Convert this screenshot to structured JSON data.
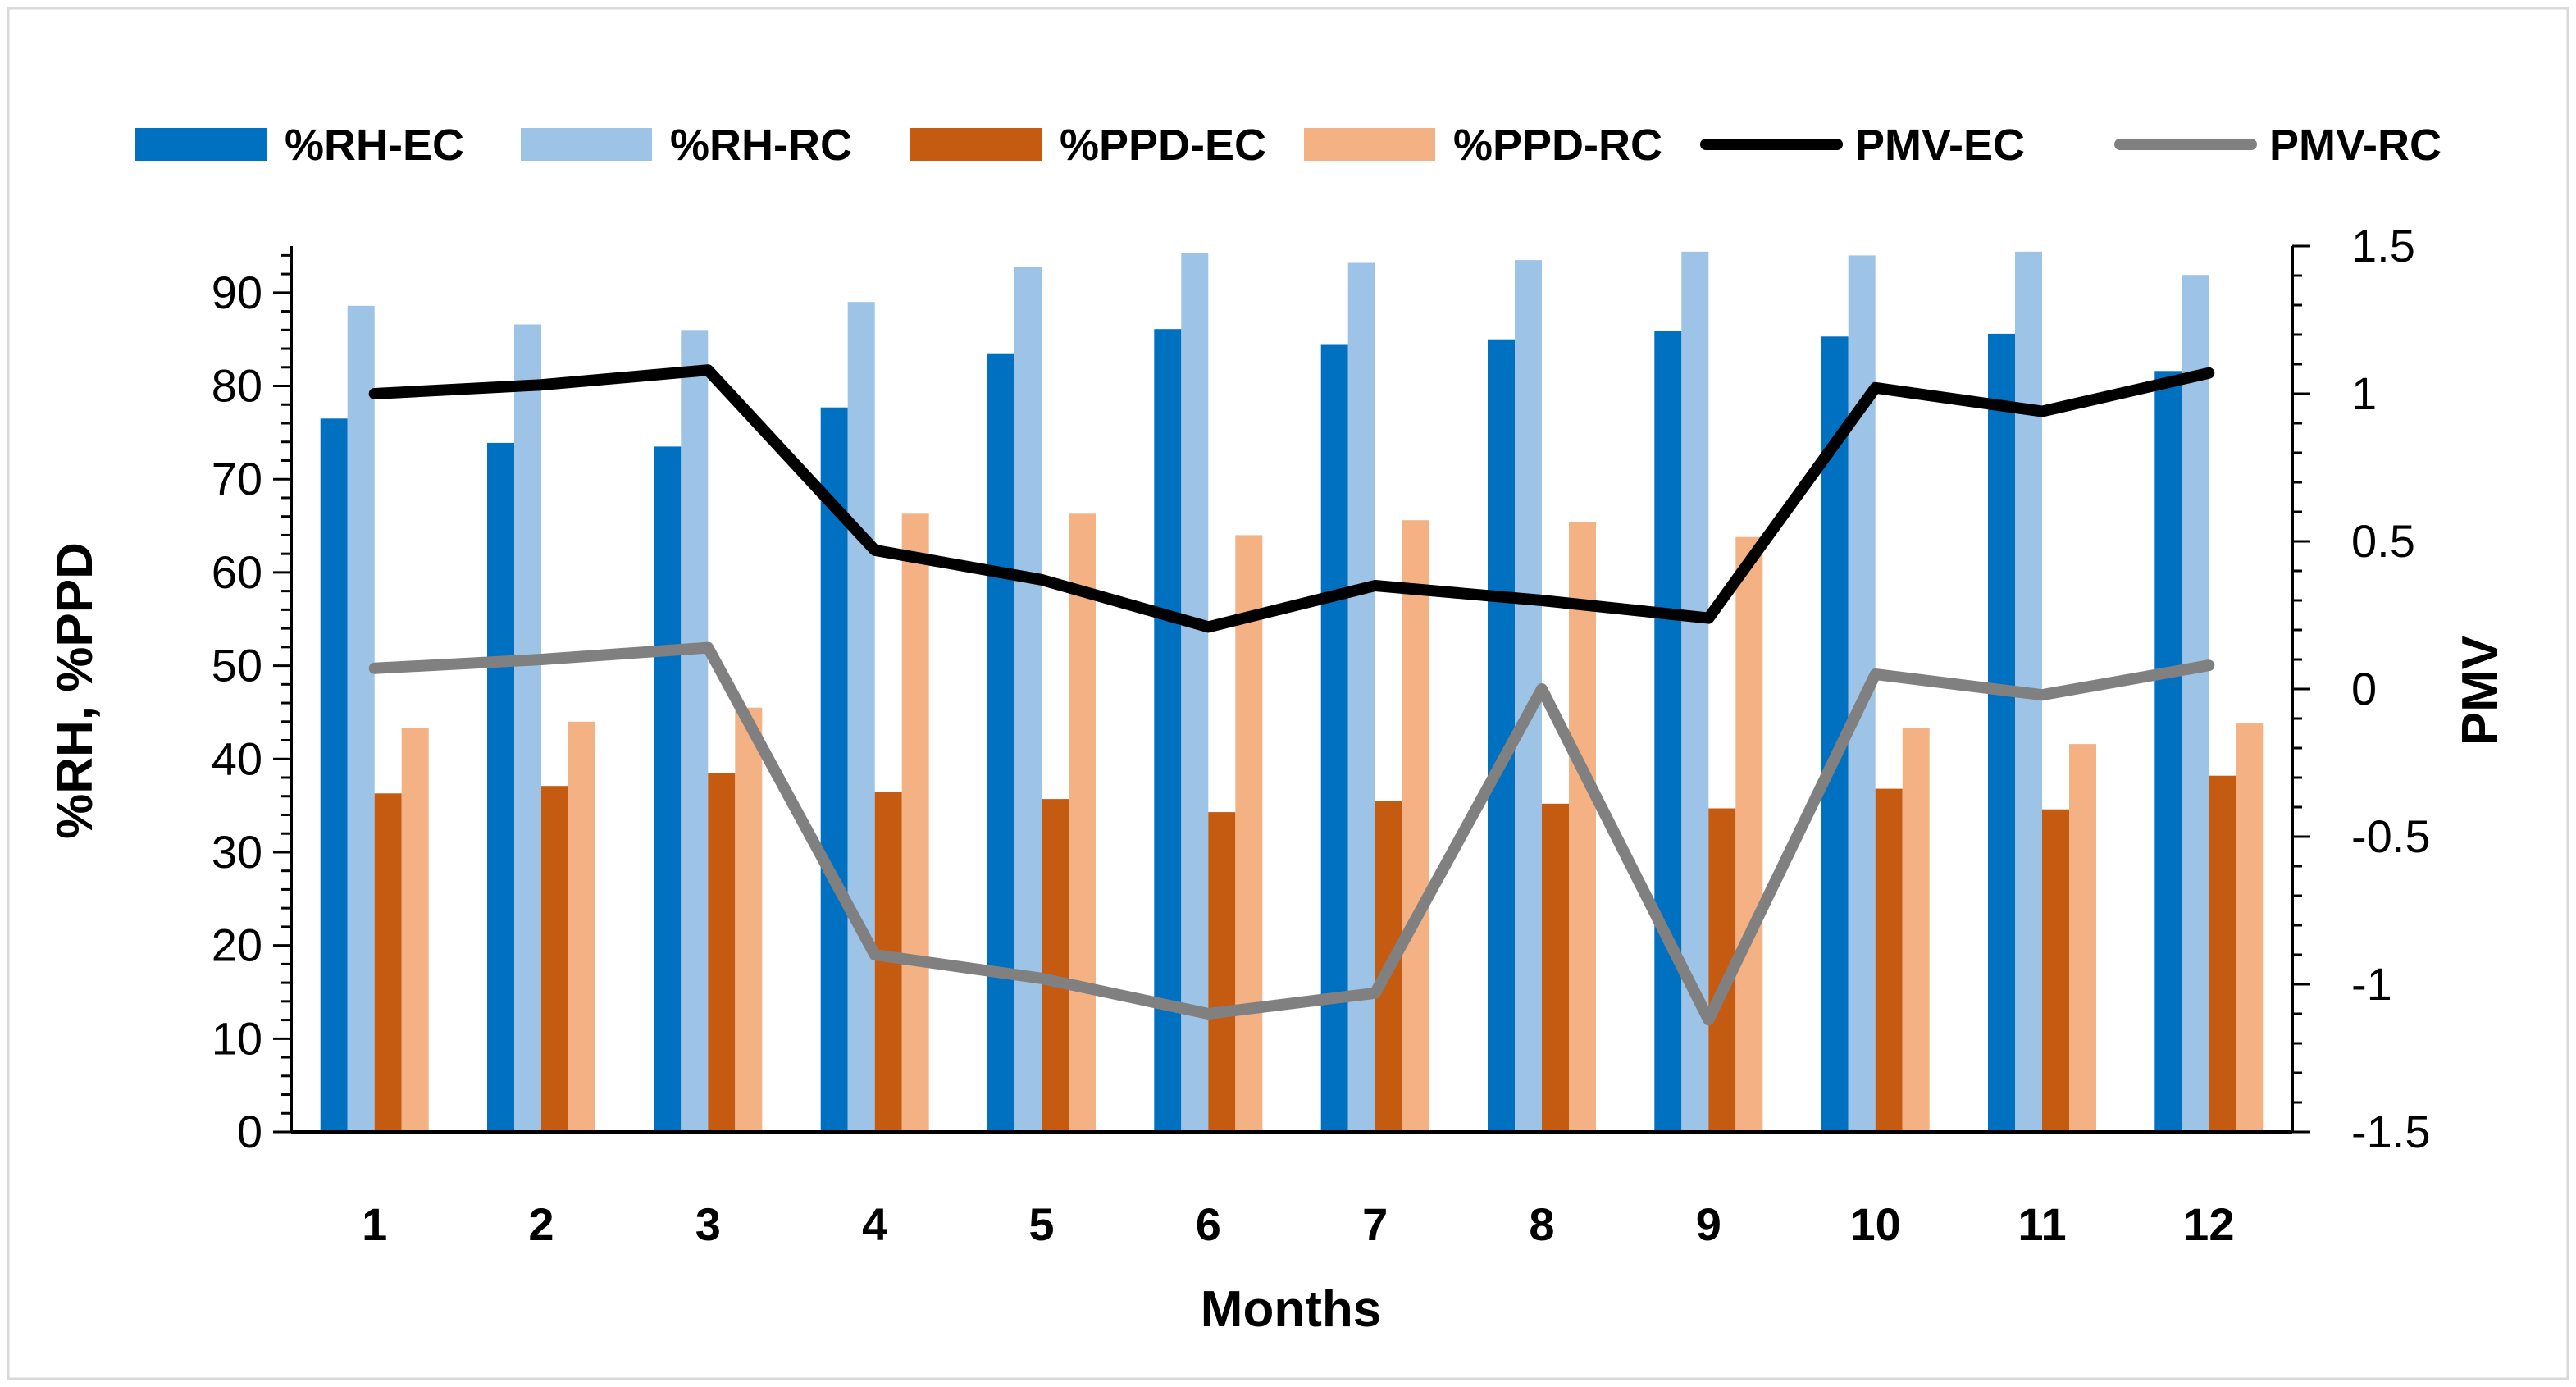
{
  "chart_data": {
    "type": "bar",
    "title": "",
    "categories": [
      "1",
      "2",
      "3",
      "4",
      "5",
      "6",
      "7",
      "8",
      "9",
      "10",
      "11",
      "12"
    ],
    "xlabel": "Months",
    "ylabel": "%RH, %PPD",
    "y2label": "PMV",
    "ylim": [
      0,
      95
    ],
    "yticks": [
      0,
      10,
      20,
      30,
      40,
      50,
      60,
      70,
      80,
      90
    ],
    "ytick_labels": [
      "0",
      "10",
      "20",
      "30",
      "40",
      "50",
      "60",
      "70",
      "80",
      "90"
    ],
    "y2lim": [
      -1.5,
      1.5
    ],
    "y2ticks": [
      -1.5,
      -1,
      -0.5,
      0,
      0.5,
      1,
      1.5
    ],
    "y2tick_labels": [
      "-1.5",
      "-1",
      "-0.5",
      "0",
      "0.5",
      "1",
      "1.5"
    ],
    "legend_position": "top",
    "bar_series": [
      {
        "name": "%RH-EC",
        "color": "#0070C0",
        "values": [
          76.5,
          73.9,
          73.5,
          77.7,
          83.5,
          86.1,
          84.4,
          85.0,
          85.9,
          85.3,
          85.6,
          81.6
        ]
      },
      {
        "name": "%RH-RC",
        "color": "#9DC3E6",
        "values": [
          88.6,
          86.6,
          86.0,
          89.0,
          92.8,
          94.3,
          93.2,
          93.5,
          94.4,
          94.0,
          94.4,
          91.9
        ]
      },
      {
        "name": "%PPD-EC",
        "color": "#C55A11",
        "values": [
          36.3,
          37.1,
          38.5,
          36.5,
          35.7,
          34.3,
          35.5,
          35.2,
          34.7,
          36.8,
          34.6,
          38.2
        ]
      },
      {
        "name": "%PPD-RC",
        "color": "#F4B183",
        "values": [
          43.3,
          44.0,
          45.5,
          66.3,
          66.3,
          64.0,
          65.6,
          65.4,
          63.8,
          43.3,
          41.6,
          43.8
        ]
      }
    ],
    "line_series": [
      {
        "name": "PMV-EC",
        "color": "#000000",
        "axis": "right",
        "values": [
          1.0,
          1.03,
          1.08,
          0.47,
          0.37,
          0.21,
          0.35,
          0.3,
          0.24,
          1.02,
          0.94,
          1.07
        ]
      },
      {
        "name": "PMV-RC",
        "color": "#808080",
        "axis": "right",
        "values": [
          0.07,
          0.1,
          0.14,
          -0.9,
          -0.98,
          -1.1,
          -1.03,
          0.0,
          -1.12,
          0.05,
          -0.02,
          0.08
        ]
      }
    ]
  }
}
